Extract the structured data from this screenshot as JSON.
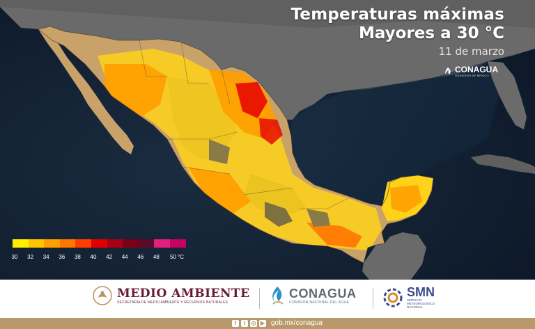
{
  "title": {
    "line1": "Temperaturas máximas",
    "line2": "Mayores a 30 °C",
    "date": "11 de marzo"
  },
  "watermark": {
    "name": "CONAGUA",
    "sub": "GOBIERNO DE MÉXICO"
  },
  "legend": {
    "steps": [
      {
        "label": "30",
        "color": "#ffee00"
      },
      {
        "label": "32",
        "color": "#ffc400"
      },
      {
        "label": "34",
        "color": "#ff9e00"
      },
      {
        "label": "36",
        "color": "#ff7600"
      },
      {
        "label": "38",
        "color": "#ff3c00"
      },
      {
        "label": "40",
        "color": "#e00000"
      },
      {
        "label": "42",
        "color": "#a80014"
      },
      {
        "label": "44",
        "color": "#7a0018"
      },
      {
        "label": "46",
        "color": "#5c0a2a"
      },
      {
        "label": "48",
        "color": "#e0207a"
      },
      {
        "label": "50 °C",
        "color": "#c80064"
      }
    ]
  },
  "footer": {
    "medio_ambiente": {
      "name": "MEDIO AMBIENTE",
      "sub": "SECRETARÍA DE MEDIO AMBIENTE Y RECURSOS NATURALES"
    },
    "conagua": {
      "name": "CONAGUA",
      "sub": "COMISIÓN NACIONAL DEL AGUA"
    },
    "smn": {
      "name": "SMN",
      "sub": "SERVICIO METEOROLÓGICO NACIONAL"
    },
    "social_icons": [
      "facebook-icon",
      "twitter-icon",
      "instagram-icon",
      "youtube-icon"
    ],
    "website": "gob.mx/conagua"
  },
  "colors": {
    "ocean": "#0f2033",
    "land": "#6b6b6b",
    "arid": "#c9a26a",
    "below_30": "#8a7a48",
    "brand": "#691c32",
    "bottom_bar": "#b89a6a"
  }
}
